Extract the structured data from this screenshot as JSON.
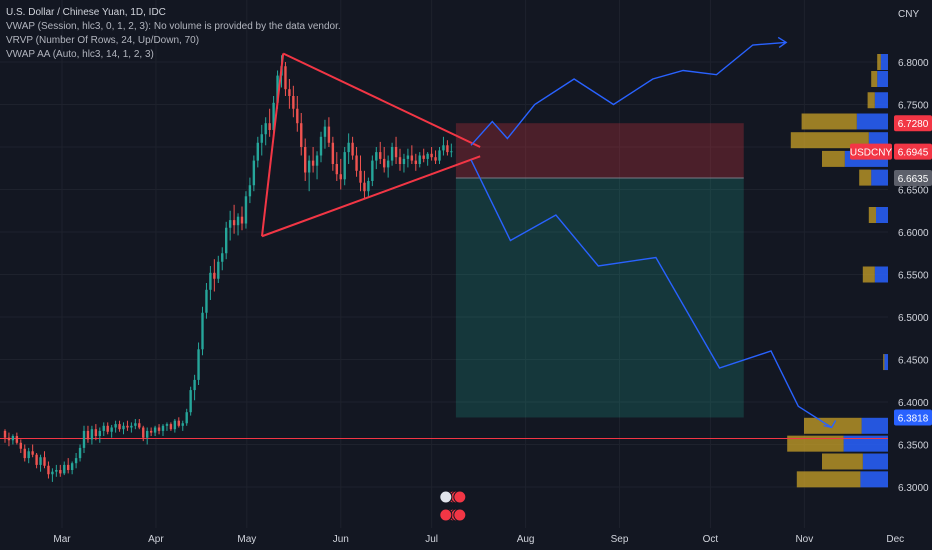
{
  "legend": {
    "title": "U.S. Dollar / Chinese Yuan, 1D, IDC",
    "indicators": [
      "VWAP (Session, hlc3, 0, 1, 2, 3): No volume is provided by the data vendor.",
      "VRVP (Number Of Rows, 24, Up/Down, 70)",
      "VWAP AA (Auto, hlc3, 14, 1, 2, 3)"
    ]
  },
  "chart_data": {
    "type": "candlestick",
    "symbol": "USDCNY",
    "currency": "CNY",
    "ylim": [
      6.28,
      6.84
    ],
    "y_ticks": [
      "6.8000",
      "6.7500",
      "6.7000",
      "6.6500",
      "6.6000",
      "6.5500",
      "6.5000",
      "6.4500",
      "6.4000",
      "6.3500",
      "6.3000"
    ],
    "x_ticks": [
      "Mar",
      "Apr",
      "May",
      "Jun",
      "Jul",
      "Aug",
      "Sep",
      "Oct",
      "Nov",
      "Dec"
    ],
    "price_labels": {
      "target": "6.7280",
      "symbol_tag": "USDCNY",
      "last": "6.6945",
      "entry": "6.6635",
      "stop": "6.3818"
    },
    "candles": [
      [
        6.366,
        6.368,
        6.352,
        6.358
      ],
      [
        6.358,
        6.364,
        6.348,
        6.355
      ],
      [
        6.355,
        6.362,
        6.35,
        6.36
      ],
      [
        6.36,
        6.364,
        6.35,
        6.352
      ],
      [
        6.352,
        6.356,
        6.34,
        6.345
      ],
      [
        6.345,
        6.35,
        6.33,
        6.334
      ],
      [
        6.334,
        6.346,
        6.328,
        6.342
      ],
      [
        6.342,
        6.35,
        6.335,
        6.338
      ],
      [
        6.338,
        6.34,
        6.322,
        6.326
      ],
      [
        6.326,
        6.338,
        6.318,
        6.335
      ],
      [
        6.335,
        6.342,
        6.322,
        6.325
      ],
      [
        6.325,
        6.33,
        6.31,
        6.315
      ],
      [
        6.315,
        6.322,
        6.306,
        6.318
      ],
      [
        6.318,
        6.326,
        6.312,
        6.32
      ],
      [
        6.32,
        6.326,
        6.312,
        6.316
      ],
      [
        6.316,
        6.33,
        6.314,
        6.326
      ],
      [
        6.326,
        6.334,
        6.316,
        6.32
      ],
      [
        6.32,
        6.33,
        6.315,
        6.328
      ],
      [
        6.328,
        6.34,
        6.322,
        6.334
      ],
      [
        6.334,
        6.35,
        6.33,
        6.346
      ],
      [
        6.346,
        6.372,
        6.34,
        6.366
      ],
      [
        6.366,
        6.372,
        6.352,
        6.356
      ],
      [
        6.356,
        6.372,
        6.35,
        6.368
      ],
      [
        6.368,
        6.374,
        6.355,
        6.36
      ],
      [
        6.36,
        6.37,
        6.352,
        6.366
      ],
      [
        6.366,
        6.376,
        6.36,
        6.372
      ],
      [
        6.372,
        6.376,
        6.362,
        6.365
      ],
      [
        6.365,
        6.373,
        6.358,
        6.37
      ],
      [
        6.37,
        6.378,
        6.364,
        6.374
      ],
      [
        6.374,
        6.378,
        6.365,
        6.368
      ],
      [
        6.368,
        6.376,
        6.362,
        6.372
      ],
      [
        6.372,
        6.378,
        6.366,
        6.37
      ],
      [
        6.37,
        6.376,
        6.364,
        6.372
      ],
      [
        6.372,
        6.38,
        6.368,
        6.375
      ],
      [
        6.375,
        6.38,
        6.368,
        6.37
      ],
      [
        6.37,
        6.372,
        6.354,
        6.358
      ],
      [
        6.358,
        6.37,
        6.35,
        6.366
      ],
      [
        6.366,
        6.37,
        6.36,
        6.364
      ],
      [
        6.364,
        6.372,
        6.36,
        6.37
      ],
      [
        6.37,
        6.374,
        6.362,
        6.366
      ],
      [
        6.366,
        6.374,
        6.36,
        6.372
      ],
      [
        6.372,
        6.376,
        6.366,
        6.374
      ],
      [
        6.374,
        6.376,
        6.366,
        6.368
      ],
      [
        6.368,
        6.38,
        6.364,
        6.378
      ],
      [
        6.378,
        6.382,
        6.37,
        6.372
      ],
      [
        6.372,
        6.378,
        6.366,
        6.375
      ],
      [
        6.375,
        6.392,
        6.372,
        6.388
      ],
      [
        6.388,
        6.418,
        6.384,
        6.414
      ],
      [
        6.414,
        6.432,
        6.402,
        6.426
      ],
      [
        6.426,
        6.47,
        6.42,
        6.462
      ],
      [
        6.462,
        6.512,
        6.455,
        6.505
      ],
      [
        6.505,
        6.54,
        6.498,
        6.532
      ],
      [
        6.532,
        6.56,
        6.52,
        6.552
      ],
      [
        6.552,
        6.568,
        6.53,
        6.545
      ],
      [
        6.545,
        6.572,
        6.54,
        6.565
      ],
      [
        6.565,
        6.582,
        6.555,
        6.575
      ],
      [
        6.575,
        6.612,
        6.568,
        6.605
      ],
      [
        6.605,
        6.625,
        6.59,
        6.614
      ],
      [
        6.614,
        6.632,
        6.598,
        6.608
      ],
      [
        6.608,
        6.622,
        6.596,
        6.618
      ],
      [
        6.618,
        6.63,
        6.602,
        6.61
      ],
      [
        6.61,
        6.648,
        6.604,
        6.642
      ],
      [
        6.642,
        6.664,
        6.634,
        6.655
      ],
      [
        6.655,
        6.69,
        6.648,
        6.684
      ],
      [
        6.684,
        6.712,
        6.676,
        6.705
      ],
      [
        6.705,
        6.726,
        6.69,
        6.715
      ],
      [
        6.715,
        6.735,
        6.702,
        6.728
      ],
      [
        6.728,
        6.745,
        6.712,
        6.72
      ],
      [
        6.72,
        6.76,
        6.715,
        6.752
      ],
      [
        6.752,
        6.79,
        6.745,
        6.784
      ],
      [
        6.784,
        6.808,
        6.77,
        6.795
      ],
      [
        6.795,
        6.8,
        6.76,
        6.768
      ],
      [
        6.768,
        6.78,
        6.745,
        6.76
      ],
      [
        6.76,
        6.772,
        6.735,
        6.745
      ],
      [
        6.745,
        6.76,
        6.718,
        6.728
      ],
      [
        6.728,
        6.74,
        6.69,
        6.7
      ],
      [
        6.7,
        6.71,
        6.66,
        6.67
      ],
      [
        6.67,
        6.69,
        6.648,
        6.684
      ],
      [
        6.684,
        6.7,
        6.67,
        6.678
      ],
      [
        6.678,
        6.695,
        6.662,
        6.69
      ],
      [
        6.69,
        6.718,
        6.682,
        6.712
      ],
      [
        6.712,
        6.732,
        6.698,
        6.724
      ],
      [
        6.724,
        6.735,
        6.7,
        6.705
      ],
      [
        6.705,
        6.712,
        6.672,
        6.68
      ],
      [
        6.68,
        6.694,
        6.66,
        6.668
      ],
      [
        6.668,
        6.686,
        6.65,
        6.662
      ],
      [
        6.662,
        6.7,
        6.655,
        6.694
      ],
      [
        6.694,
        6.716,
        6.68,
        6.705
      ],
      [
        6.705,
        6.712,
        6.685,
        6.69
      ],
      [
        6.69,
        6.7,
        6.665,
        6.672
      ],
      [
        6.672,
        6.69,
        6.648,
        6.658
      ],
      [
        6.658,
        6.672,
        6.64,
        6.648
      ],
      [
        6.648,
        6.664,
        6.64,
        6.66
      ],
      [
        6.66,
        6.69,
        6.654,
        6.684
      ],
      [
        6.684,
        6.7,
        6.674,
        6.694
      ],
      [
        6.694,
        6.706,
        6.68,
        6.686
      ],
      [
        6.686,
        6.7,
        6.67,
        6.676
      ],
      [
        6.676,
        6.69,
        6.664,
        6.684
      ],
      [
        6.684,
        6.705,
        6.678,
        6.7
      ],
      [
        6.7,
        6.712,
        6.68,
        6.688
      ],
      [
        6.688,
        6.698,
        6.672,
        6.68
      ],
      [
        6.68,
        6.692,
        6.67,
        6.686
      ],
      [
        6.686,
        6.698,
        6.676,
        6.69
      ],
      [
        6.69,
        6.702,
        6.68,
        6.684
      ],
      [
        6.684,
        6.692,
        6.672,
        6.68
      ],
      [
        6.68,
        6.694,
        6.676,
        6.69
      ],
      [
        6.69,
        6.698,
        6.682,
        6.686
      ],
      [
        6.686,
        6.694,
        6.678,
        6.692
      ],
      [
        6.692,
        6.7,
        6.684,
        6.688
      ],
      [
        6.688,
        6.696,
        6.68,
        6.684
      ],
      [
        6.684,
        6.7,
        6.68,
        6.696
      ],
      [
        6.696,
        6.712,
        6.69,
        6.702
      ],
      [
        6.702,
        6.708,
        6.69,
        6.694
      ],
      [
        6.694,
        6.704,
        6.688,
        6.695
      ]
    ],
    "projections": [
      {
        "name": "bullish",
        "points": [
          [
            "2022-07-14",
            6.702
          ],
          [
            "2022-07-21",
            6.73
          ],
          [
            "2022-07-26",
            6.71
          ],
          [
            "2022-08-04",
            6.75
          ],
          [
            "2022-08-17",
            6.78
          ],
          [
            "2022-08-30",
            6.75
          ],
          [
            "2022-09-12",
            6.78
          ],
          [
            "2022-09-22",
            6.79
          ],
          [
            "2022-10-03",
            6.785
          ],
          [
            "2022-10-15",
            6.82
          ],
          [
            "2022-10-26",
            6.823
          ]
        ]
      },
      {
        "name": "bearish",
        "points": [
          [
            "2022-07-14",
            6.685
          ],
          [
            "2022-07-27",
            6.59
          ],
          [
            "2022-08-11",
            6.62
          ],
          [
            "2022-08-25",
            6.56
          ],
          [
            "2022-09-13",
            6.57
          ],
          [
            "2022-10-04",
            6.44
          ],
          [
            "2022-10-21",
            6.46
          ],
          [
            "2022-10-30",
            6.395
          ],
          [
            "2022-11-10",
            6.37
          ]
        ]
      }
    ],
    "triangle": {
      "apex_price": 6.692,
      "upper_start_price": 6.81,
      "lower_start_price": 6.595
    },
    "levels": {
      "target": 6.728,
      "entry": 6.6635,
      "stop": 6.3818,
      "horizontal_line": 6.357
    },
    "volume_profile": [
      {
        "price": 6.8,
        "up": 0.3,
        "down": 0.6
      },
      {
        "price": 6.78,
        "up": 0.5,
        "down": 0.9
      },
      {
        "price": 6.755,
        "up": 0.6,
        "down": 1.1
      },
      {
        "price": 6.73,
        "up": 4.6,
        "down": 2.6
      },
      {
        "price": 6.708,
        "up": 6.5,
        "down": 1.6
      },
      {
        "price": 6.686,
        "up": 1.9,
        "down": 3.6
      },
      {
        "price": 6.664,
        "up": 1.0,
        "down": 1.4
      },
      {
        "price": 6.62,
        "up": 0.6,
        "down": 1.0
      },
      {
        "price": 6.55,
        "up": 1.0,
        "down": 1.1
      },
      {
        "price": 6.447,
        "up": 0.1,
        "down": 0.3
      },
      {
        "price": 6.372,
        "up": 4.8,
        "down": 2.2
      },
      {
        "price": 6.351,
        "up": 4.7,
        "down": 3.7
      },
      {
        "price": 6.33,
        "up": 3.4,
        "down": 2.1
      },
      {
        "price": 6.309,
        "up": 5.3,
        "down": 2.3
      }
    ]
  }
}
